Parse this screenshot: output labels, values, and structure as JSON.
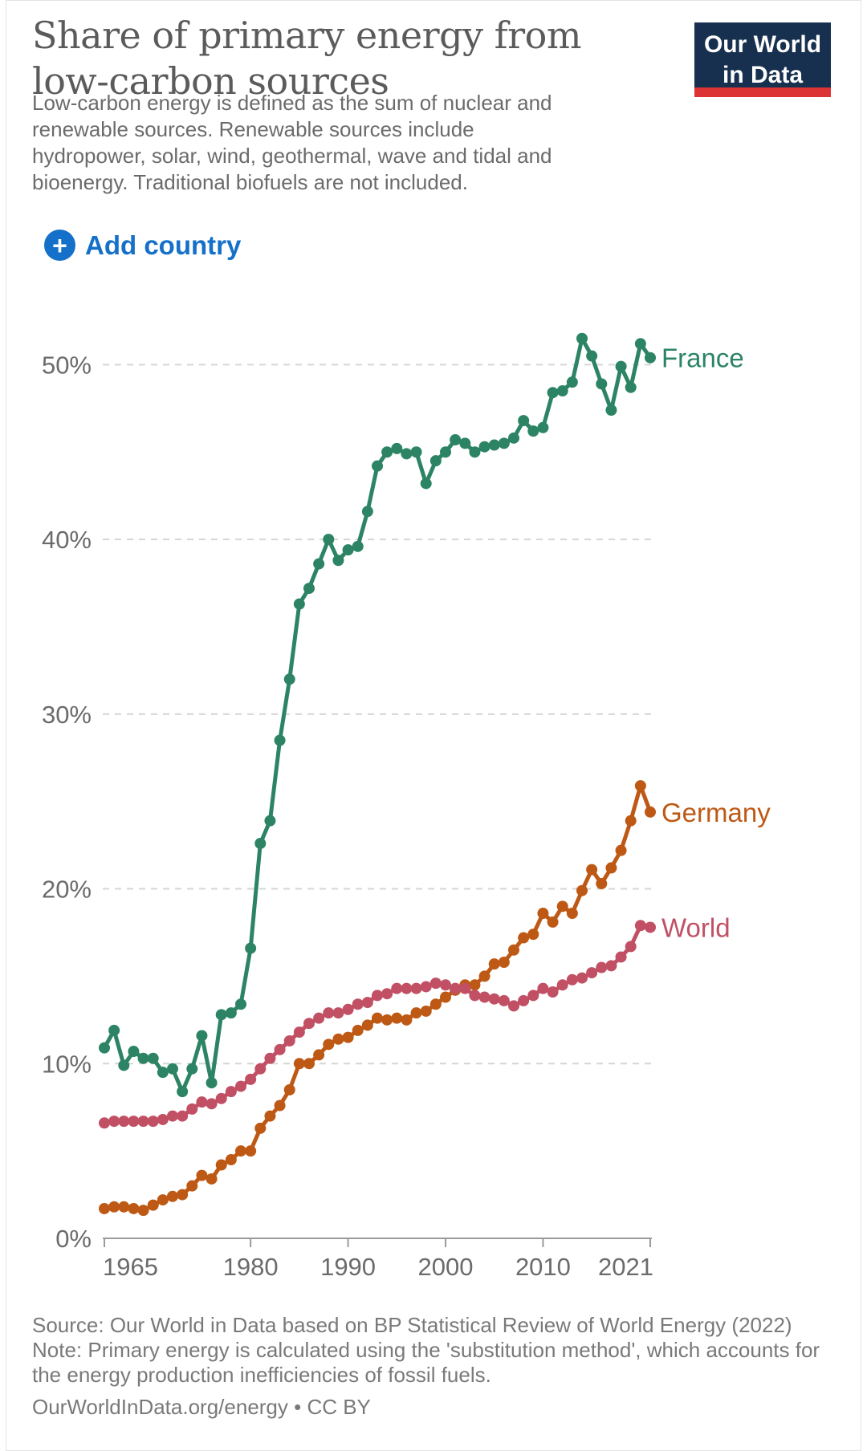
{
  "header": {
    "title_lines": [
      "Share of primary energy from",
      "low-carbon sources"
    ],
    "subtitle_lines": [
      "Low-carbon energy is defined as the sum of nuclear and",
      "renewable sources. Renewable sources include",
      "hydropower, solar, wind, geothermal, wave and tidal and",
      "bioenergy. Traditional biofuels are not included."
    ]
  },
  "logo": {
    "line1": "Our World",
    "line2": "in Data",
    "bg_color": "#18304f",
    "strip_color": "#dc3434"
  },
  "controls": {
    "add_country_label": "Add country",
    "plus_glyph": "+",
    "accent_blue": "#1470c8"
  },
  "chart_data": {
    "type": "line",
    "title": "Share of primary energy from low-carbon sources",
    "xlabel": "",
    "ylabel": "",
    "x_domain": [
      1965,
      2021
    ],
    "x_ticks": [
      1965,
      1980,
      1990,
      2000,
      2010,
      2021
    ],
    "y_ticks": [
      0,
      10,
      20,
      30,
      40,
      50
    ],
    "y_tick_labels": [
      "0%",
      "10%",
      "20%",
      "30%",
      "40%",
      "50%"
    ],
    "ylim": [
      0,
      54
    ],
    "grid": "dashed-horizontal",
    "legend_position": "end-of-line-labels",
    "years": [
      1965,
      1966,
      1967,
      1968,
      1969,
      1970,
      1971,
      1972,
      1973,
      1974,
      1975,
      1976,
      1977,
      1978,
      1979,
      1980,
      1981,
      1982,
      1983,
      1984,
      1985,
      1986,
      1987,
      1988,
      1989,
      1990,
      1991,
      1992,
      1993,
      1994,
      1995,
      1996,
      1997,
      1998,
      1999,
      2000,
      2001,
      2002,
      2003,
      2004,
      2005,
      2006,
      2007,
      2008,
      2009,
      2010,
      2011,
      2012,
      2013,
      2014,
      2015,
      2016,
      2017,
      2018,
      2019,
      2020,
      2021
    ],
    "series": [
      {
        "name": "France",
        "color": "#2c8465",
        "values": [
          10.9,
          11.9,
          9.9,
          10.7,
          10.3,
          10.3,
          9.5,
          9.7,
          8.4,
          9.7,
          11.6,
          8.9,
          12.8,
          12.9,
          13.4,
          16.6,
          22.6,
          23.9,
          28.5,
          32.0,
          36.3,
          37.2,
          38.6,
          40.0,
          38.8,
          39.4,
          39.6,
          41.6,
          44.2,
          45.0,
          45.2,
          44.9,
          45.0,
          43.2,
          44.5,
          45.0,
          45.7,
          45.5,
          45.0,
          45.3,
          45.4,
          45.5,
          45.8,
          46.8,
          46.2,
          46.4,
          48.4,
          48.5,
          49.0,
          51.5,
          50.5,
          48.9,
          47.4,
          49.9,
          48.7,
          51.2,
          50.4
        ]
      },
      {
        "name": "Germany",
        "color": "#be5915",
        "values": [
          1.7,
          1.8,
          1.8,
          1.7,
          1.6,
          1.9,
          2.2,
          2.4,
          2.5,
          3.0,
          3.6,
          3.4,
          4.2,
          4.5,
          5.0,
          5.0,
          6.3,
          7.0,
          7.6,
          8.5,
          10.0,
          10.0,
          10.5,
          11.1,
          11.4,
          11.5,
          11.9,
          12.2,
          12.6,
          12.5,
          12.6,
          12.5,
          12.9,
          13.0,
          13.4,
          13.8,
          14.2,
          14.5,
          14.5,
          15.0,
          15.7,
          15.8,
          16.5,
          17.2,
          17.4,
          18.6,
          18.1,
          19.0,
          18.6,
          19.9,
          21.1,
          20.3,
          21.2,
          22.2,
          23.9,
          25.9,
          24.4
        ]
      },
      {
        "name": "World",
        "color": "#c15065",
        "values": [
          6.6,
          6.7,
          6.7,
          6.7,
          6.7,
          6.7,
          6.8,
          7.0,
          7.0,
          7.4,
          7.8,
          7.7,
          8.0,
          8.4,
          8.7,
          9.1,
          9.7,
          10.3,
          10.8,
          11.3,
          11.8,
          12.3,
          12.6,
          12.9,
          12.9,
          13.1,
          13.4,
          13.5,
          13.9,
          14.0,
          14.3,
          14.3,
          14.3,
          14.4,
          14.6,
          14.5,
          14.3,
          14.3,
          13.9,
          13.8,
          13.7,
          13.6,
          13.3,
          13.6,
          13.9,
          14.3,
          14.1,
          14.5,
          14.8,
          14.9,
          15.2,
          15.5,
          15.6,
          16.1,
          16.7,
          17.9,
          17.8
        ]
      }
    ]
  },
  "footer": {
    "source_line": "Source: Our World in Data based on BP Statistical Review of World Energy (2022)",
    "note_line": "Note: Primary energy is calculated using the 'substitution method', which accounts for the energy production inefficiencies of fossil fuels.",
    "link_line": "OurWorldInData.org/energy • CC BY"
  },
  "colors": {
    "title": "#5b5b5b",
    "subtitle": "#6b6b6b",
    "tick_label": "#6b6b6b",
    "gridline": "#d6d6d6",
    "axis": "#9b9b9b",
    "footer": "#797979"
  }
}
